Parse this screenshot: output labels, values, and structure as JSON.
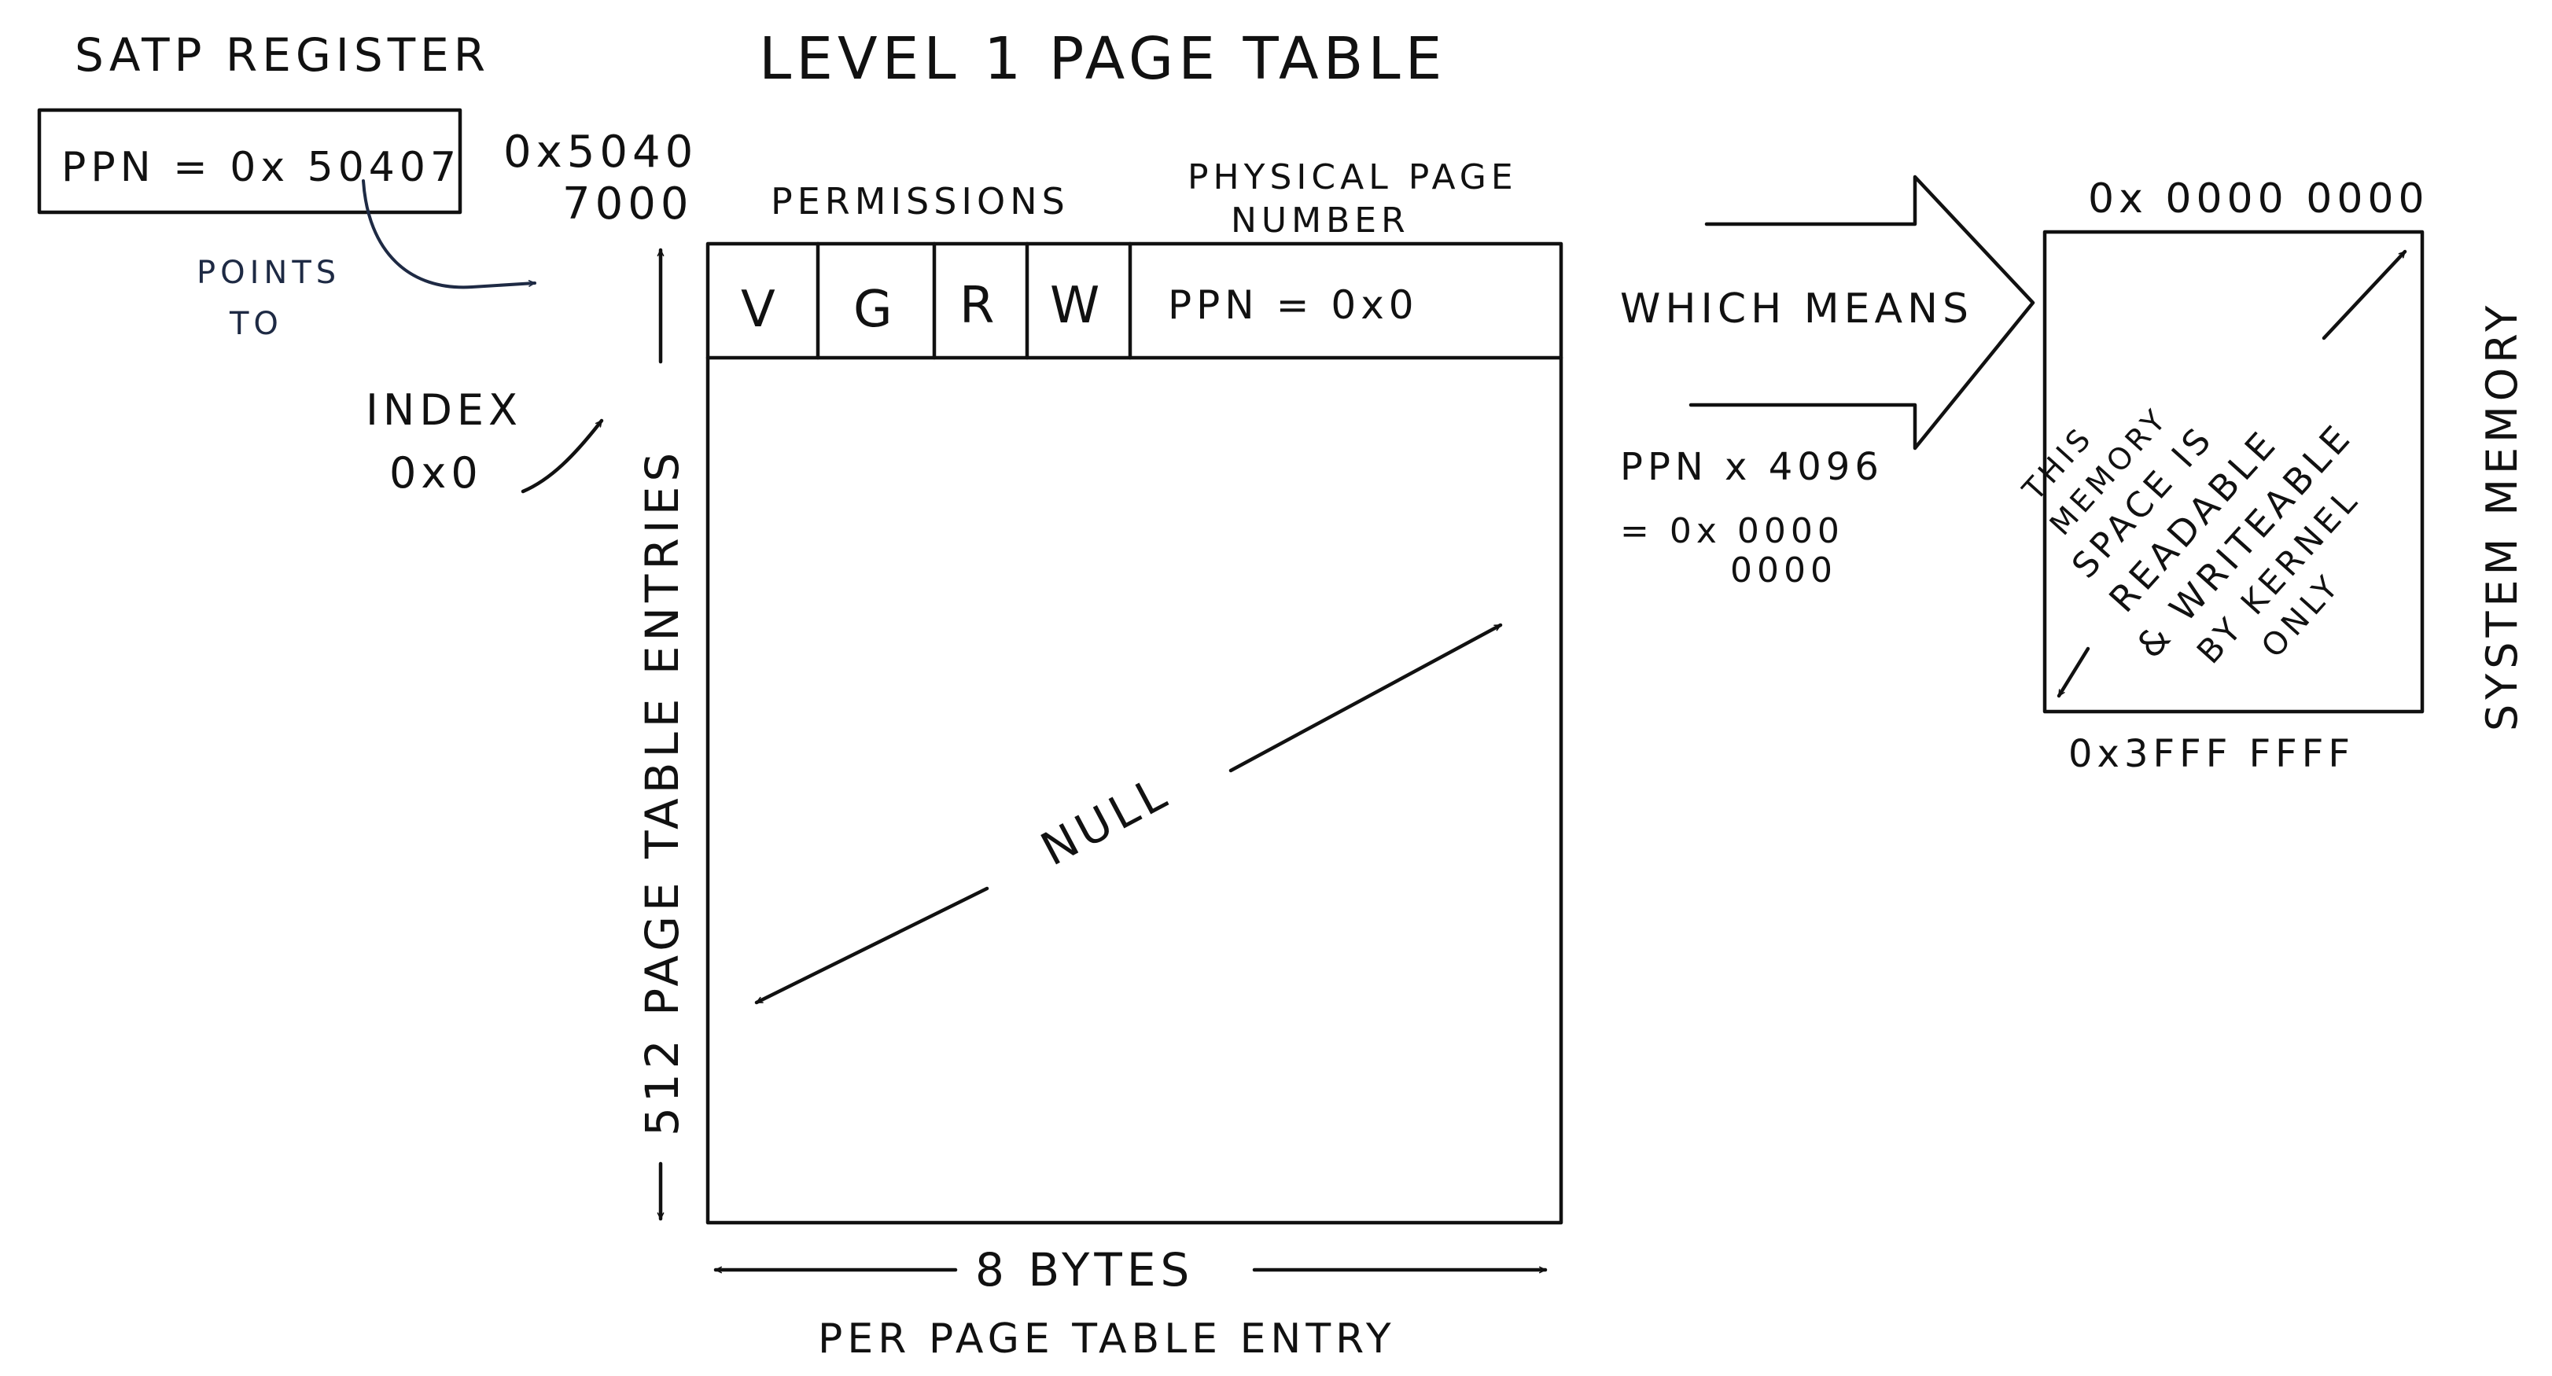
{
  "satp": {
    "title": "SATP REGISTER",
    "value": "PPN = 0x 50407",
    "points_to": [
      "POINTS",
      "TO"
    ]
  },
  "table": {
    "title": "LEVEL 1 PAGE TABLE",
    "address": [
      "0x5040",
      "7000"
    ],
    "permissions_label": "PERMISSIONS",
    "ppn_header": [
      "PHYSICAL PAGE",
      "NUMBER"
    ],
    "perm_bits": [
      "V",
      "G",
      "R",
      "W"
    ],
    "entry_ppn": "PPN = 0x0",
    "index": [
      "INDEX",
      "0x0"
    ],
    "entries_label": "512 PAGE TABLE ENTRIES",
    "null_label": "NULL",
    "bytes_label": "8 BYTES",
    "per_entry_label": "PER PAGE TABLE ENTRY"
  },
  "meaning": {
    "which_means": "WHICH MEANS",
    "calc": [
      "PPN x 4096",
      "= 0x 0000",
      "0000"
    ]
  },
  "memory": {
    "top_addr": "0x 0000 0000",
    "bottom_addr": "0x3FFF FFFF",
    "label": "SYSTEM MEMORY",
    "description": [
      "THIS",
      "MEMORY",
      "SPACE IS",
      "READABLE",
      "& WRITEABLE",
      "BY KERNEL",
      "ONLY"
    ]
  }
}
